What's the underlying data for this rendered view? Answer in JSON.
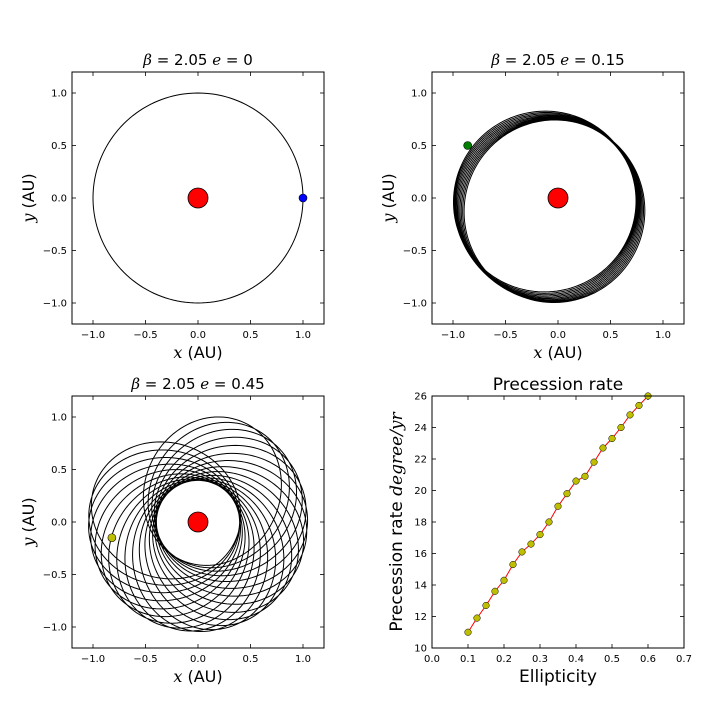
{
  "chart_data": [
    {
      "type": "line",
      "title_math": {
        "b": "β",
        "beta": "= 2.05",
        "e": "e",
        "ecc": "= 0"
      },
      "xlabel": {
        "var": "x",
        "unit": "(AU)"
      },
      "ylabel": {
        "var": "y",
        "unit": "(AU)"
      },
      "xlim": [
        -1.2,
        1.2
      ],
      "ylim": [
        -1.2,
        1.2
      ],
      "xticks": [
        -1.0,
        -0.5,
        0.0,
        0.5,
        1.0
      ],
      "yticks": [
        -1.0,
        -0.5,
        0.0,
        0.5,
        1.0
      ],
      "xtick_labels": [
        "−1.0",
        "−0.5",
        "0.0",
        "0.5",
        "1.0"
      ],
      "ytick_labels": [
        "−1.0",
        "−0.5",
        "0.0",
        "0.5",
        "1.0"
      ],
      "orbit": {
        "semi_major_axis": 1.0,
        "eccentricity": 0.0,
        "precession_turns": 0.0,
        "loops": 1
      },
      "sun": {
        "x": 0.0,
        "y": 0.0,
        "color": "#ff0000"
      },
      "planet": {
        "x": 1.0,
        "y": 0.0,
        "color": "#0000ff"
      }
    },
    {
      "type": "line",
      "title_math": {
        "b": "β",
        "beta": "= 2.05",
        "e": "e",
        "ecc": "= 0.15"
      },
      "xlabel": {
        "var": "x",
        "unit": "(AU)"
      },
      "ylabel": {
        "var": "y",
        "unit": "(AU)"
      },
      "xlim": [
        -1.2,
        1.2
      ],
      "ylim": [
        -1.2,
        1.2
      ],
      "xticks": [
        -1.0,
        -0.5,
        0.0,
        0.5,
        1.0
      ],
      "yticks": [
        -1.0,
        -0.5,
        0.0,
        0.5,
        1.0
      ],
      "xtick_labels": [
        "−1.0",
        "−0.5",
        "0.0",
        "0.5",
        "1.0"
      ],
      "ytick_labels": [
        "−1.0",
        "−0.5",
        "0.0",
        "0.5",
        "1.0"
      ],
      "orbit": {
        "semi_major_axis": 0.87,
        "eccentricity": 0.15,
        "precession_start_deg": 15,
        "precession_end_deg": 75,
        "loops": 11
      },
      "sun": {
        "x": 0.0,
        "y": 0.0,
        "color": "#ff0000"
      },
      "planet": {
        "x": -0.86,
        "y": 0.5,
        "color": "#008000"
      }
    },
    {
      "type": "line",
      "title_math": {
        "b": "β",
        "beta": "= 2.05",
        "e": "e",
        "ecc": "= 0.45"
      },
      "xlabel": {
        "var": "x",
        "unit": "(AU)"
      },
      "ylabel": {
        "var": "y",
        "unit": "(AU)"
      },
      "xlim": [
        -1.2,
        1.2
      ],
      "ylim": [
        -1.2,
        1.2
      ],
      "xticks": [
        -1.0,
        -0.5,
        0.0,
        0.5,
        1.0
      ],
      "yticks": [
        -1.0,
        -0.5,
        0.0,
        0.5,
        1.0
      ],
      "xtick_labels": [
        "−1.0",
        "−0.5",
        "0.0",
        "0.5",
        "1.0"
      ],
      "ytick_labels": [
        "−1.0",
        "−0.5",
        "0.0",
        "0.5",
        "1.0"
      ],
      "orbit": {
        "semi_major_axis": 0.72,
        "eccentricity": 0.45,
        "precession_start_deg": -20,
        "precession_end_deg": 245,
        "loops": 22
      },
      "sun": {
        "x": 0.0,
        "y": 0.0,
        "color": "#ff0000"
      },
      "planet": {
        "x": -0.82,
        "y": -0.15,
        "color": "#bfbf00"
      }
    },
    {
      "type": "line",
      "title": "Precession rate",
      "xlabel": "Ellipticity",
      "ylabel": {
        "text": "Precession rate",
        "unit_math": "degree/yr"
      },
      "xlim": [
        0.0,
        0.7
      ],
      "ylim": [
        10,
        26
      ],
      "xticks": [
        0.0,
        0.1,
        0.2,
        0.3,
        0.4,
        0.5,
        0.6,
        0.7
      ],
      "yticks": [
        10,
        12,
        14,
        16,
        18,
        20,
        22,
        24,
        26
      ],
      "xtick_labels": [
        "0.0",
        "0.1",
        "0.2",
        "0.3",
        "0.4",
        "0.5",
        "0.6",
        "0.7"
      ],
      "ytick_labels": [
        "10",
        "12",
        "14",
        "16",
        "18",
        "20",
        "22",
        "24",
        "26"
      ],
      "line_color": "#ff0000",
      "marker_color": "#bfbf00",
      "x": [
        0.1,
        0.125,
        0.15,
        0.175,
        0.2,
        0.225,
        0.25,
        0.275,
        0.3,
        0.325,
        0.35,
        0.375,
        0.4,
        0.425,
        0.45,
        0.475,
        0.5,
        0.525,
        0.55,
        0.575,
        0.6
      ],
      "y": [
        11.0,
        11.9,
        12.7,
        13.6,
        14.3,
        15.3,
        16.1,
        16.6,
        17.2,
        18.0,
        19.0,
        19.8,
        20.6,
        20.9,
        21.8,
        22.7,
        23.3,
        24.0,
        24.8,
        25.4,
        26.0
      ]
    }
  ]
}
